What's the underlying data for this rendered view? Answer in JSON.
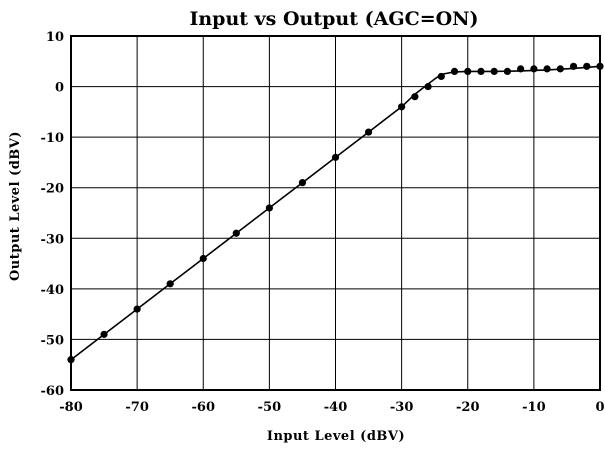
{
  "chart_data": {
    "type": "line",
    "title": "Input vs Output (AGC=ON)",
    "xlabel": "Input Level (dBV)",
    "ylabel": "Output Level (dBV)",
    "xlim": [
      -80,
      0
    ],
    "ylim": [
      -60,
      10
    ],
    "xticks": [
      "-80",
      "-70",
      "-60",
      "-50",
      "-40",
      "-30",
      "-20",
      "-10",
      "0"
    ],
    "yticks": [
      "10",
      "0",
      "-10",
      "-20",
      "-30",
      "-40",
      "-50",
      "-60"
    ],
    "grid": true,
    "line": {
      "x": [
        -80,
        -75,
        -70,
        -65,
        -60,
        -55,
        -50,
        -47.5,
        -45,
        -40,
        -37.5,
        -35,
        -32.5,
        -30,
        -28,
        -26,
        -25,
        -24,
        -22,
        -20,
        -16,
        -12,
        -8,
        -4,
        0
      ],
      "y": [
        -54,
        -49,
        -44,
        -39,
        -34,
        -29,
        -24,
        -21.5,
        -19,
        -14,
        -11.5,
        -9,
        -6.5,
        -4,
        -1.5,
        0.5,
        1.5,
        2.4,
        2.9,
        3.0,
        3.0,
        3.1,
        3.3,
        3.6,
        4.0
      ]
    },
    "markers": {
      "x": [
        -80,
        -75,
        -70,
        -65,
        -60,
        -55,
        -50,
        -45,
        -40,
        -35,
        -30,
        -28,
        -26,
        -24,
        -22,
        -20,
        -18,
        -16,
        -14,
        -12,
        -10,
        -8,
        -6,
        -4,
        -2,
        0
      ],
      "y": [
        -54,
        -49,
        -44,
        -39,
        -34,
        -29,
        -24,
        -19,
        -14,
        -9,
        -4,
        -2,
        0,
        2,
        3,
        3,
        3,
        3,
        3,
        3.5,
        3.5,
        3.5,
        3.5,
        4,
        4,
        4
      ]
    }
  }
}
